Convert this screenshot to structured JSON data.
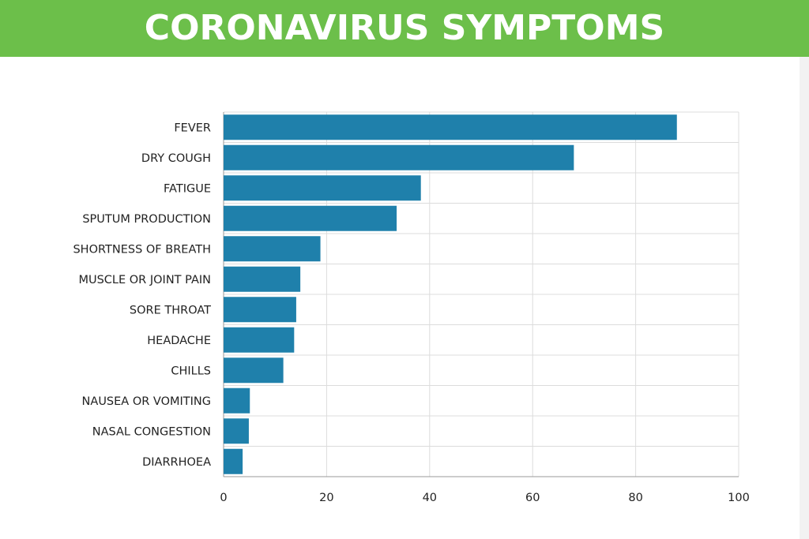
{
  "header": {
    "title": "CORONAVIRUS SYMPTOMS"
  },
  "colors": {
    "header_bg": "#6cbf4a",
    "bar": "#1f80ab",
    "grid": "#dcdcdc"
  },
  "chart_data": {
    "type": "bar",
    "orientation": "horizontal",
    "categories": [
      "FEVER",
      "DRY COUGH",
      "FATIGUE",
      "SPUTUM PRODUCTION",
      "SHORTNESS OF BREATH",
      "MUSCLE OR JOINT PAIN",
      "SORE THROAT",
      "HEADACHE",
      "CHILLS",
      "NAUSEA OR VOMITING",
      "NASAL CONGESTION",
      "DIARRHOEA"
    ],
    "values": [
      88,
      68,
      38.3,
      33.6,
      18.8,
      14.9,
      14.1,
      13.7,
      11.6,
      5.1,
      4.9,
      3.7
    ],
    "xlim": [
      0,
      100
    ],
    "xticks": [
      "0",
      "20",
      "40",
      "60",
      "80",
      "100"
    ],
    "grid": true
  }
}
